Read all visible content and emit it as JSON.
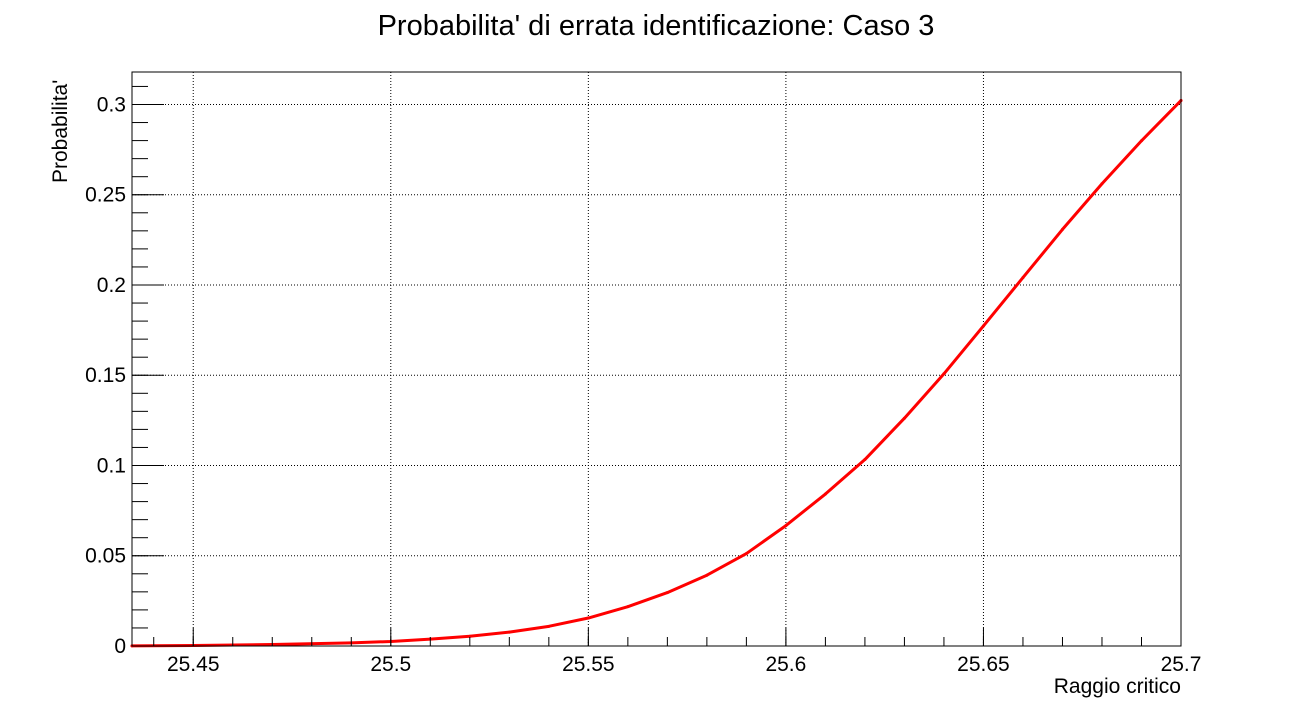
{
  "chart_data": {
    "type": "line",
    "title": "Probabilita' di errata identificazione: Caso 3",
    "xlabel": "Raggio critico",
    "ylabel": "Probabilita'",
    "xlim": [
      25.4345,
      25.7
    ],
    "ylim": [
      0,
      0.318
    ],
    "grid": true,
    "x_ticks": [
      "25.45",
      "25.5",
      "25.55",
      "25.6",
      "25.65",
      "25.7"
    ],
    "y_ticks": [
      "0",
      "0.05",
      "0.1",
      "0.15",
      "0.2",
      "0.25",
      "0.3"
    ],
    "series": [
      {
        "color": "#ff0000",
        "x": [
          25.4345,
          25.45,
          25.47,
          25.49,
          25.5,
          25.51,
          25.52,
          25.53,
          25.54,
          25.55,
          25.56,
          25.57,
          25.58,
          25.59,
          25.6,
          25.61,
          25.62,
          25.63,
          25.64,
          25.65,
          25.66,
          25.67,
          25.68,
          25.69,
          25.7
        ],
        "y": [
          0.0001,
          0.0003,
          0.0008,
          0.0017,
          0.0025,
          0.0038,
          0.0054,
          0.0077,
          0.0109,
          0.0155,
          0.0218,
          0.0296,
          0.0392,
          0.0512,
          0.0667,
          0.0842,
          0.1033,
          0.1262,
          0.1508,
          0.1773,
          0.2041,
          0.2308,
          0.2561,
          0.2799,
          0.3022
        ]
      }
    ]
  }
}
